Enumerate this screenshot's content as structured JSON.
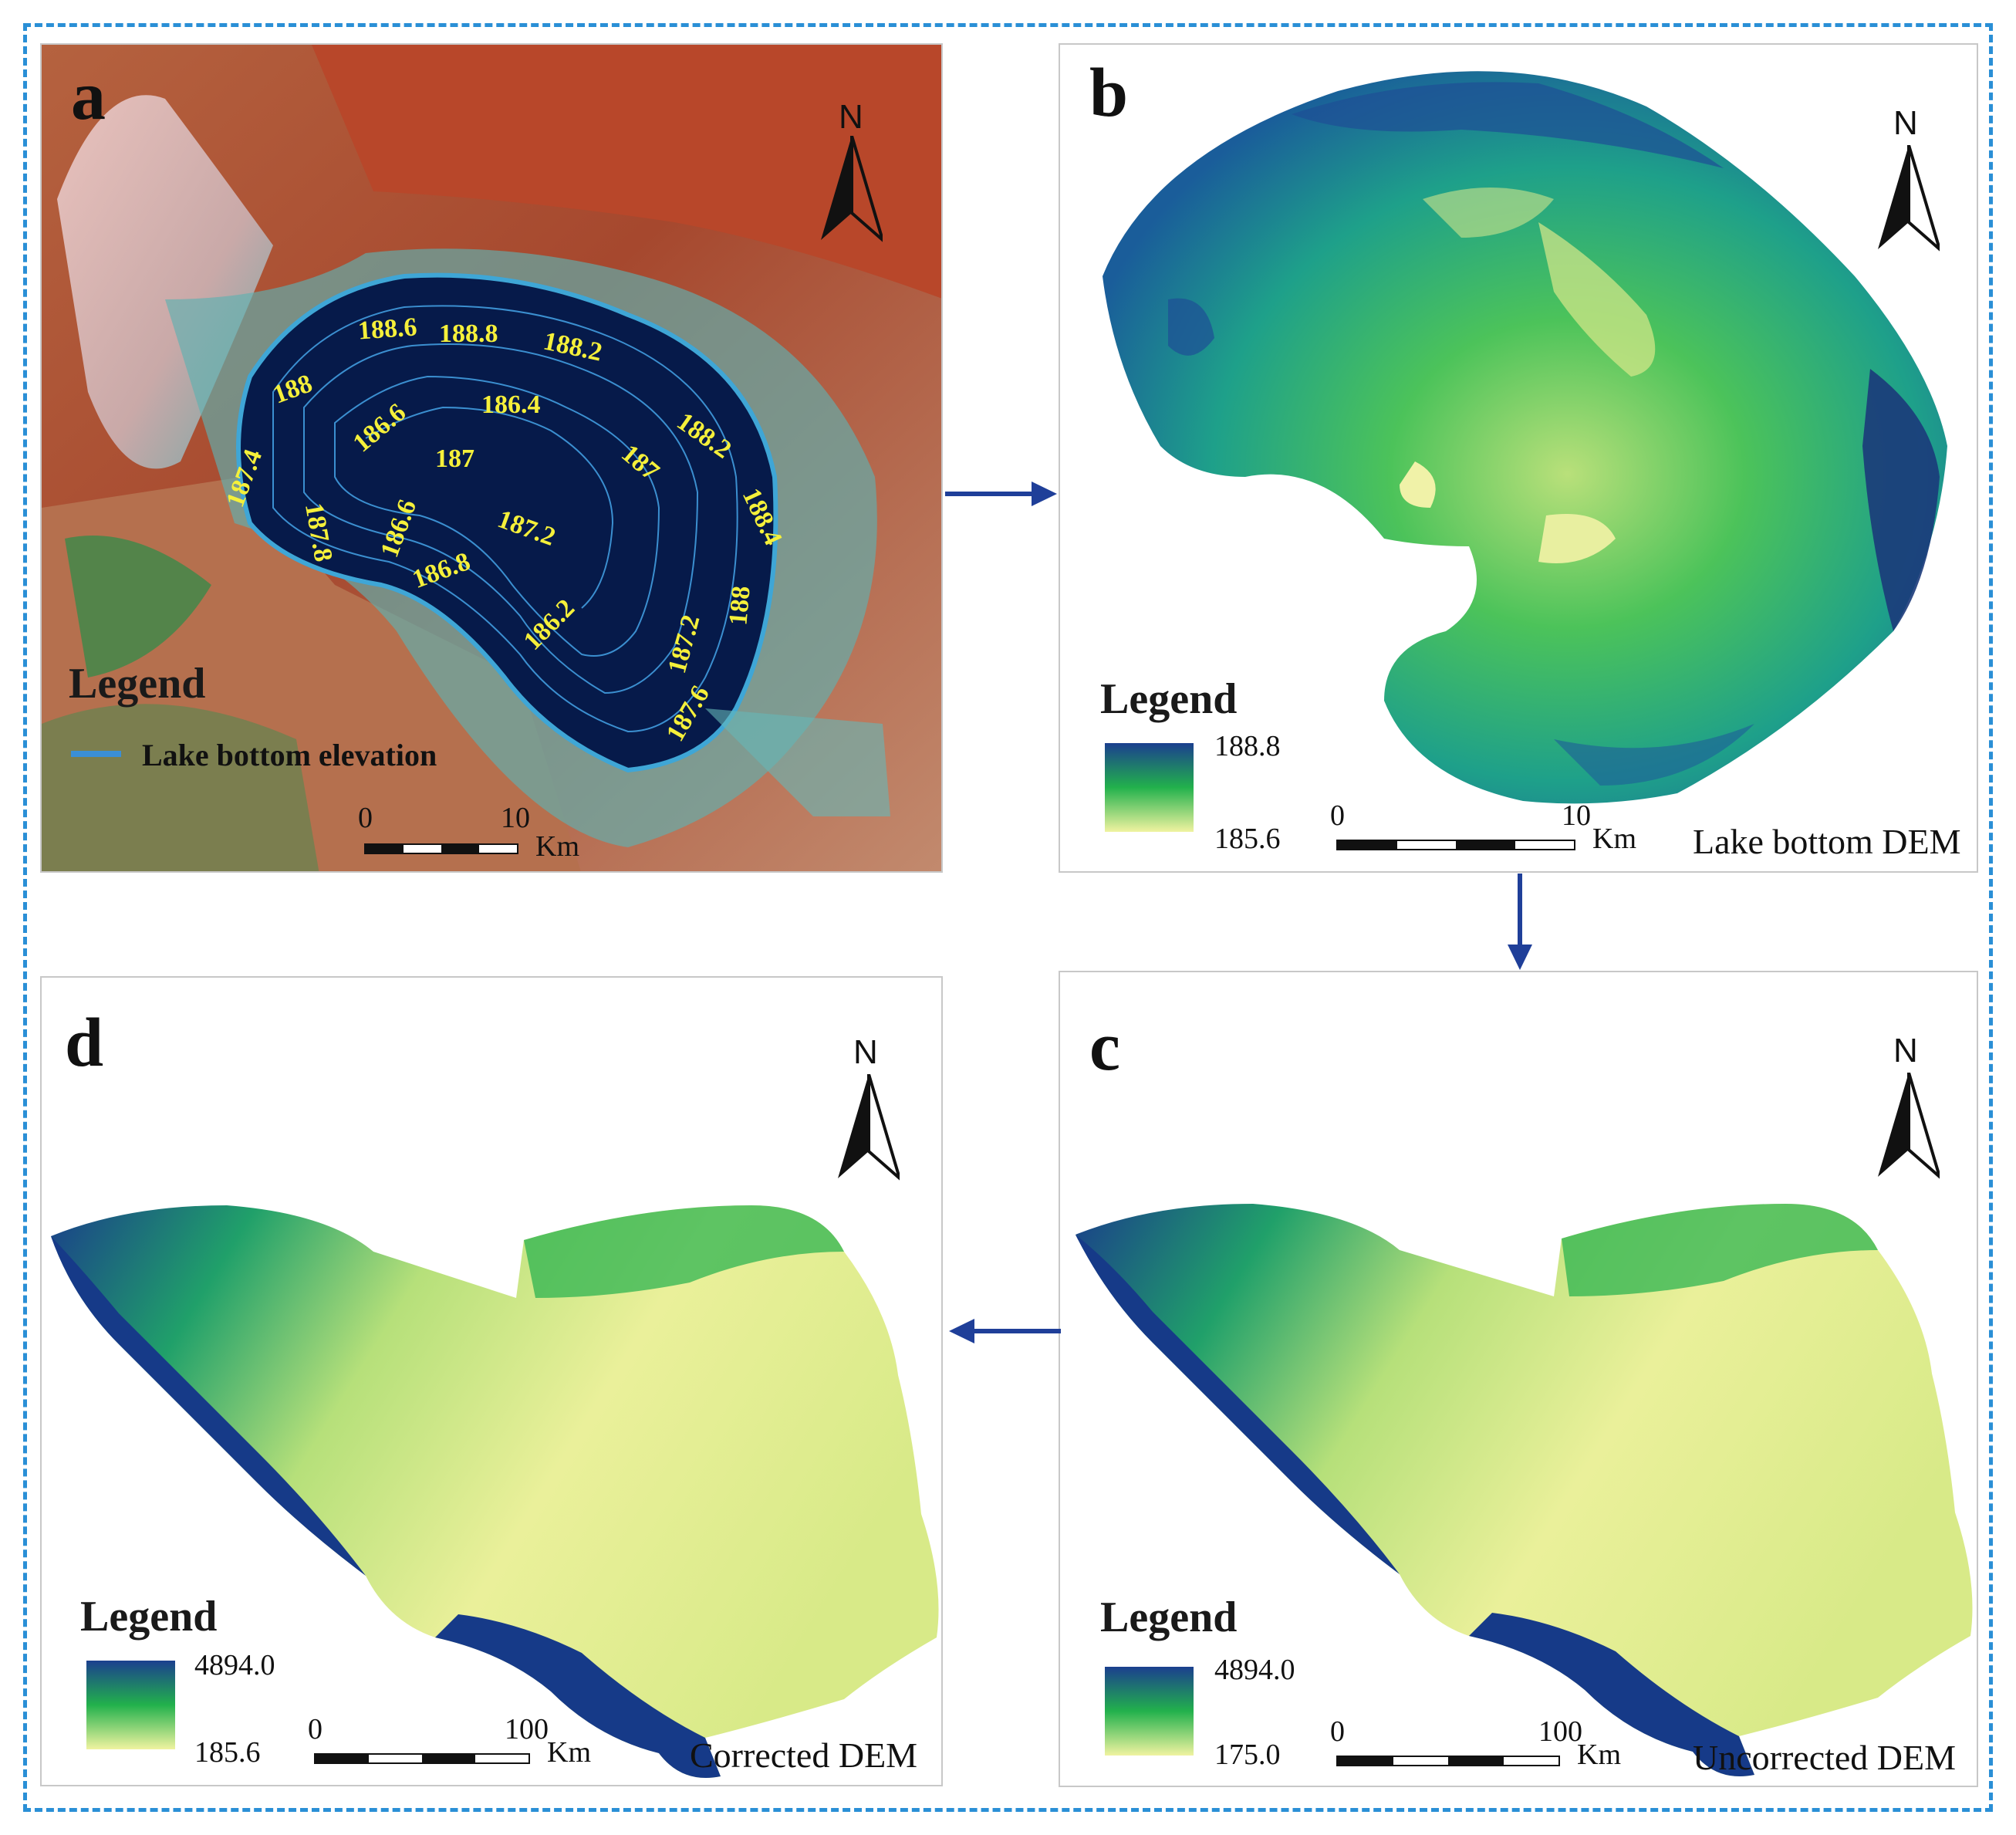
{
  "panels": {
    "a": {
      "label": "a",
      "north": "N",
      "legend_title": "Legend",
      "legend_item": "Lake bottom elevation",
      "scale": {
        "start": "0",
        "end": "10",
        "unit": "Km"
      },
      "contours": [
        "188.6",
        "188.8",
        "188.2",
        "188",
        "186.6",
        "186.4",
        "188.2",
        "187.4",
        "187",
        "187",
        "188.4",
        "187.8",
        "186.6",
        "187.2",
        "186.8",
        "186.2",
        "187.2",
        "188",
        "187.6"
      ]
    },
    "b": {
      "label": "b",
      "north": "N",
      "legend_title": "Legend",
      "legend_max": "188.8",
      "legend_min": "185.6",
      "scale": {
        "start": "0",
        "end": "10",
        "unit": "Km"
      },
      "caption": "Lake bottom DEM"
    },
    "c": {
      "label": "c",
      "north": "N",
      "legend_title": "Legend",
      "legend_max": "4894.0",
      "legend_min": "175.0",
      "scale": {
        "start": "0",
        "end": "100",
        "unit": "Km"
      },
      "caption": "Uncorrected DEM"
    },
    "d": {
      "label": "d",
      "north": "N",
      "legend_title": "Legend",
      "legend_max": "4894.0",
      "legend_min": "185.6",
      "scale": {
        "start": "0",
        "end": "100",
        "unit": "Km"
      },
      "caption": "Corrected DEM"
    }
  },
  "colors": {
    "frame": "#2a8fd6",
    "arrow": "#1f3f99",
    "contour_label": "#f5f03a",
    "ramp_high": "#1b3f8f",
    "ramp_mid": "#22b14c",
    "ramp_low": "#f0f3a0"
  }
}
